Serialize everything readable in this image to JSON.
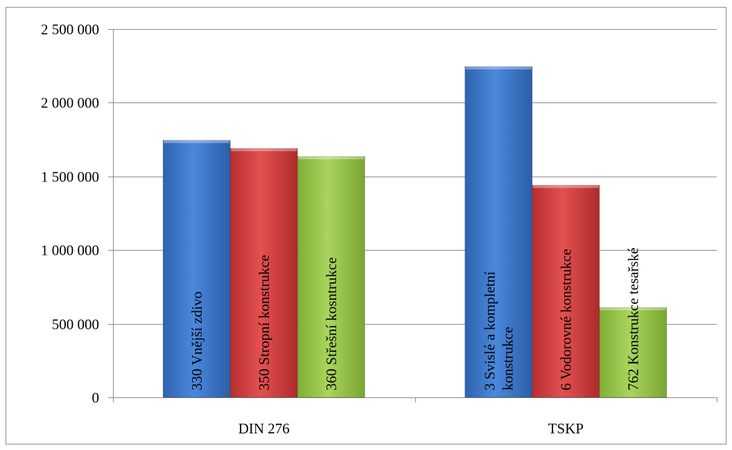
{
  "chart_data": {
    "type": "bar",
    "categories": [
      "DIN 276",
      "TSKP"
    ],
    "ylim": [
      0,
      2500000
    ],
    "yticks": [
      {
        "value": 0,
        "label": "0"
      },
      {
        "value": 500000,
        "label": "500 000"
      },
      {
        "value": 1000000,
        "label": "1 000 000"
      },
      {
        "value": 1500000,
        "label": "1 500 000"
      },
      {
        "value": 2000000,
        "label": "2 000 000"
      },
      {
        "value": 2500000,
        "label": "2 500 000"
      }
    ],
    "grid": true,
    "legend": "none",
    "series_colors": [
      "#3c78cc",
      "#d63c3c",
      "#98c84a"
    ],
    "groups": [
      {
        "category": "DIN 276",
        "bars": [
          {
            "value": 1745000,
            "label_lines": [
              "330 Vnější zdivo"
            ]
          },
          {
            "value": 1690000,
            "label_lines": [
              "350 Stropní konstrukce"
            ]
          },
          {
            "value": 1635000,
            "label_lines": [
              "360 Střešní kosntrukce"
            ]
          }
        ]
      },
      {
        "category": "TSKP",
        "bars": [
          {
            "value": 2245000,
            "label_lines": [
              "3 Svislé  a kompletní",
              "konstrukce"
            ]
          },
          {
            "value": 1440000,
            "label_lines": [
              "6 Vodorovné konstrukce"
            ]
          },
          {
            "value": 610000,
            "label_lines": [
              "762 Konstrukce tesařské"
            ]
          }
        ]
      }
    ]
  }
}
